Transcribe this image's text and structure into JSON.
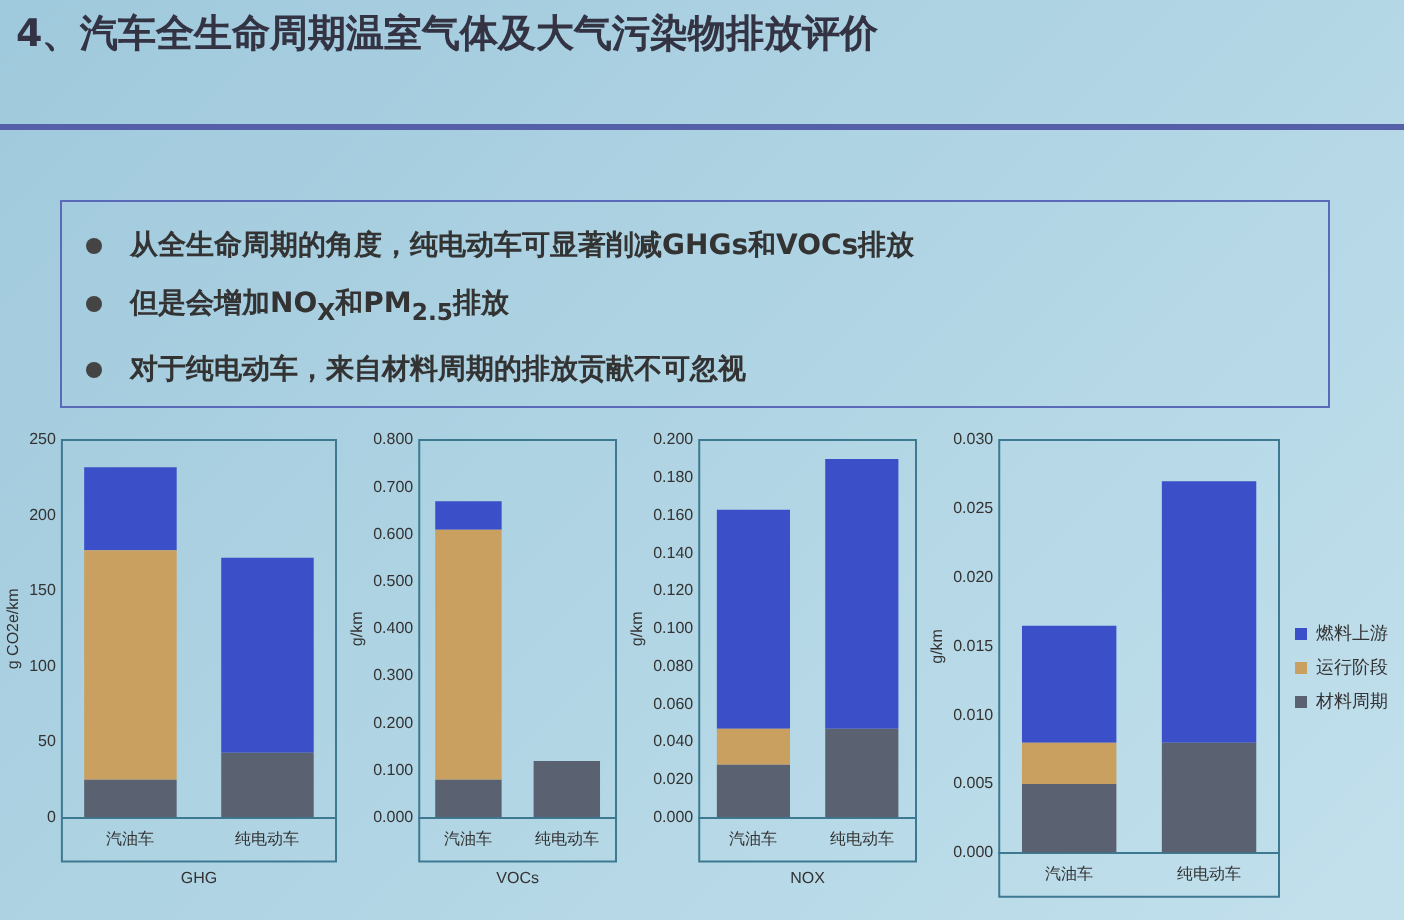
{
  "chart_data": [
    {
      "type": "bar",
      "title": "4、汽车全生命周期温室气体及大气污染物排放评价",
      "annotations": [
        "从全生命周期的角度，纯电动车可显著削减GHGs和VOCs排放",
        "但是会增加NO$_{X}$和PM$_{2.5}$排放",
        "对于纯电动车，来自材料周期的排放贡献不可忽视"
      ],
      "xlabel": "GHG",
      "ylabel": "g CO2e/km",
      "categories": [
        "汽油车",
        "纯电动车"
      ],
      "stacked": true,
      "legend": false,
      "grid": false,
      "series": [
        {
          "color": "#5a6272",
          "values": [
            25,
            43
          ]
        },
        {
          "color": "#c9a060",
          "values": [
            152,
            0
          ]
        },
        {
          "color": "#3a4fc8",
          "values": [
            55,
            129
          ]
        }
      ],
      "ylim": [
        0,
        250
      ],
      "yticks": [
        0,
        50,
        100,
        150,
        200,
        250
      ]
    },
    {
      "type": "bar",
      "xlabel": "VOCs",
      "ylabel": "g/km",
      "categories": [
        "汽油车",
        "纯电动车"
      ],
      "stacked": true,
      "legend": false,
      "grid": false,
      "series": [
        {
          "color": "#5a6272",
          "values": [
            0.08,
            0.12
          ]
        },
        {
          "color": "#c9a060",
          "values": [
            0.53,
            0
          ]
        },
        {
          "color": "#3a4fc8",
          "values": [
            0.06,
            0
          ]
        }
      ],
      "ylim": [
        0,
        0.8
      ],
      "yticks": [
        {
          "value": 0,
          "label": "0.000"
        },
        {
          "value": 0.1,
          "label": "0.100"
        },
        {
          "value": 0.2,
          "label": "0.200"
        },
        {
          "value": 0.3,
          "label": "0.300"
        },
        {
          "value": 0.4,
          "label": "0.400"
        },
        {
          "value": 0.5,
          "label": "0.500"
        },
        {
          "value": 0.6,
          "label": "0.600"
        },
        {
          "value": 0.7,
          "label": "0.700"
        },
        {
          "value": 0.8,
          "label": "0.800"
        }
      ]
    },
    {
      "type": "bar",
      "xlabel": "NOX",
      "ylabel": "g/km",
      "categories": [
        "汽油车",
        "纯电动车"
      ],
      "stacked": true,
      "legend": false,
      "grid": false,
      "series": [
        {
          "color": "#5a6272",
          "values": [
            0.028,
            0.047
          ]
        },
        {
          "color": "#c9a060",
          "values": [
            0.019,
            0
          ]
        },
        {
          "color": "#3a4fc8",
          "values": [
            0.116,
            0.143
          ]
        }
      ],
      "ylim": [
        0,
        0.2
      ],
      "yticks": [
        {
          "value": 0,
          "label": "0.000"
        },
        {
          "value": 0.02,
          "label": "0.020"
        },
        {
          "value": 0.04,
          "label": "0.040"
        },
        {
          "value": 0.06,
          "label": "0.060"
        },
        {
          "value": 0.08,
          "label": "0.080"
        },
        {
          "value": 0.1,
          "label": "0.100"
        },
        {
          "value": 0.12,
          "label": "0.120"
        },
        {
          "value": 0.14,
          "label": "0.140"
        },
        {
          "value": 0.16,
          "label": "0.160"
        },
        {
          "value": 0.18,
          "label": "0.180"
        },
        {
          "value": 0.2,
          "label": "0.200"
        }
      ]
    },
    {
      "type": "bar",
      "ylabel": "g/km",
      "categories": [
        "汽油车",
        "纯电动车"
      ],
      "stacked": true,
      "legend": "right",
      "grid": false,
      "series": [
        {
          "name": "材料周期",
          "color": "#5a6272",
          "values": [
            0.005,
            0.008
          ]
        },
        {
          "name": "运行阶段",
          "color": "#c9a060",
          "values": [
            0.003,
            0
          ]
        },
        {
          "name": "燃料上游",
          "color": "#3a4fc8",
          "values": [
            0.0085,
            0.019
          ]
        }
      ],
      "ylim": [
        0,
        0.03
      ],
      "yticks": [
        {
          "value": 0,
          "label": "0.000"
        },
        {
          "value": 0.005,
          "label": "0.005"
        },
        {
          "value": 0.01,
          "label": "0.010"
        },
        {
          "value": 0.015,
          "label": "0.015"
        },
        {
          "value": 0.02,
          "label": "0.020"
        },
        {
          "value": 0.025,
          "label": "0.025"
        },
        {
          "value": 0.03,
          "label": "0.030"
        }
      ]
    }
  ]
}
